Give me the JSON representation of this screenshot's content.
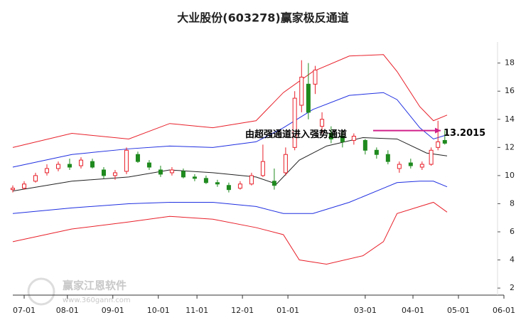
{
  "chart_data": {
    "type": "candlestick",
    "title": "大业股份(603278)赢家极反通道",
    "xlim": [
      0,
      216
    ],
    "xticks": [
      {
        "value": 5,
        "label": "07-01"
      },
      {
        "value": 24,
        "label": "08-01"
      },
      {
        "value": 44,
        "label": "09-01"
      },
      {
        "value": 64,
        "label": "10-01"
      },
      {
        "value": 81,
        "label": "11-01"
      },
      {
        "value": 101,
        "label": "12-01"
      },
      {
        "value": 121,
        "label": "01-01"
      },
      {
        "value": 155,
        "label": "03-01"
      },
      {
        "value": 176,
        "label": "04-01"
      },
      {
        "value": 196,
        "label": "05-01"
      },
      {
        "value": 216,
        "label": "06-01"
      }
    ],
    "ylim": [
      1.5,
      19.5
    ],
    "yticks": [
      2,
      4,
      6,
      8,
      10,
      12,
      14,
      16,
      18
    ],
    "up_color": "#e8202a",
    "down_color": "#1e8a1e",
    "candles": {
      "x": [
        0,
        5,
        10,
        15,
        20,
        25,
        30,
        35,
        40,
        45,
        50,
        55,
        60,
        65,
        70,
        75,
        80,
        85,
        90,
        95,
        100,
        105,
        110,
        115,
        120,
        124,
        127,
        130,
        133,
        136,
        140,
        145,
        150,
        155,
        160,
        165,
        170,
        175,
        180,
        184,
        187,
        190
      ],
      "open": [
        9.0,
        9.1,
        9.6,
        10.2,
        10.5,
        10.8,
        10.7,
        11.0,
        10.4,
        10.0,
        10.3,
        11.5,
        10.9,
        10.4,
        10.2,
        10.3,
        9.9,
        9.8,
        9.5,
        9.3,
        9.1,
        9.4,
        10.0,
        9.6,
        10.2,
        12.0,
        15.0,
        16.5,
        16.5,
        13.5,
        13.0,
        12.8,
        12.5,
        12.5,
        11.8,
        11.5,
        10.5,
        10.9,
        10.6,
        10.8,
        12.0,
        12.5
      ],
      "high": [
        9.3,
        9.6,
        10.2,
        10.8,
        11.0,
        11.2,
        11.3,
        11.2,
        10.6,
        10.4,
        12.0,
        11.7,
        11.1,
        10.7,
        10.6,
        10.5,
        10.1,
        10.0,
        9.7,
        9.5,
        9.6,
        10.2,
        12.2,
        10.5,
        12.0,
        16.0,
        18.2,
        18.0,
        17.8,
        14.5,
        13.5,
        13.2,
        13.0,
        12.6,
        12.0,
        11.8,
        11.0,
        11.2,
        11.0,
        12.0,
        13.9,
        13.2
      ],
      "low": [
        8.8,
        9.0,
        9.5,
        10.0,
        10.3,
        10.4,
        10.5,
        10.5,
        9.8,
        9.7,
        10.1,
        10.9,
        10.4,
        9.9,
        10.0,
        9.8,
        9.6,
        9.4,
        9.2,
        8.8,
        9.0,
        9.3,
        9.9,
        9.0,
        10.0,
        11.8,
        14.5,
        14.0,
        15.8,
        13.0,
        12.3,
        12.0,
        12.2,
        11.5,
        11.2,
        10.8,
        10.2,
        10.5,
        10.4,
        10.7,
        11.8,
        12.2
      ],
      "close": [
        9.1,
        9.4,
        10.0,
        10.5,
        10.8,
        10.6,
        11.1,
        10.6,
        10.0,
        10.2,
        11.8,
        11.0,
        10.6,
        10.1,
        10.4,
        9.9,
        9.8,
        9.5,
        9.4,
        9.0,
        9.4,
        10.0,
        11.0,
        9.3,
        11.5,
        15.5,
        17.0,
        14.5,
        17.5,
        14.0,
        12.6,
        12.4,
        12.8,
        11.8,
        11.5,
        11.0,
        10.8,
        10.7,
        10.8,
        11.8,
        12.4,
        12.3
      ]
    },
    "series": [
      {
        "color": "#e8202a",
        "x": [
          0,
          26,
          51,
          69,
          88,
          107,
          119,
          132,
          148,
          163,
          169,
          179,
          185,
          191
        ],
        "values": [
          12.0,
          13.0,
          12.6,
          13.7,
          13.4,
          13.9,
          15.9,
          17.4,
          18.5,
          18.6,
          17.4,
          14.9,
          13.9,
          14.3
        ]
      },
      {
        "color": "#1f2fe0",
        "x": [
          0,
          26,
          51,
          69,
          88,
          107,
          119,
          132,
          148,
          163,
          169,
          179,
          185,
          191
        ],
        "values": [
          10.6,
          11.5,
          11.9,
          12.1,
          12.0,
          12.4,
          13.4,
          14.7,
          15.7,
          15.9,
          15.4,
          13.4,
          12.6,
          12.9
        ]
      },
      {
        "color": "#222222",
        "x": [
          0,
          26,
          51,
          69,
          88,
          107,
          116,
          126,
          138,
          154,
          169,
          182,
          191
        ],
        "values": [
          8.9,
          9.6,
          9.9,
          10.4,
          10.2,
          9.9,
          9.4,
          11.1,
          12.1,
          12.7,
          12.6,
          11.6,
          11.4
        ]
      },
      {
        "color": "#1f2fe0",
        "x": [
          0,
          26,
          51,
          69,
          88,
          107,
          119,
          132,
          148,
          163,
          169,
          179,
          185,
          191
        ],
        "values": [
          7.3,
          7.7,
          8.0,
          8.1,
          8.1,
          7.8,
          7.3,
          7.3,
          8.1,
          9.1,
          9.5,
          9.6,
          9.6,
          9.2
        ]
      },
      {
        "color": "#e8202a",
        "x": [
          0,
          26,
          51,
          69,
          88,
          107,
          119,
          126,
          138,
          154,
          163,
          169,
          179,
          185,
          191
        ],
        "values": [
          5.3,
          6.2,
          6.7,
          7.1,
          6.9,
          6.3,
          5.8,
          4.0,
          3.7,
          4.3,
          5.3,
          7.3,
          7.8,
          8.1,
          7.4
        ]
      }
    ],
    "annotation": {
      "text": "由超强通道进入强势通道",
      "value": 13.2015,
      "color": "#d0208a"
    },
    "watermark": {
      "name": "赢家江恩软件",
      "url": "www.360gann.com"
    }
  }
}
